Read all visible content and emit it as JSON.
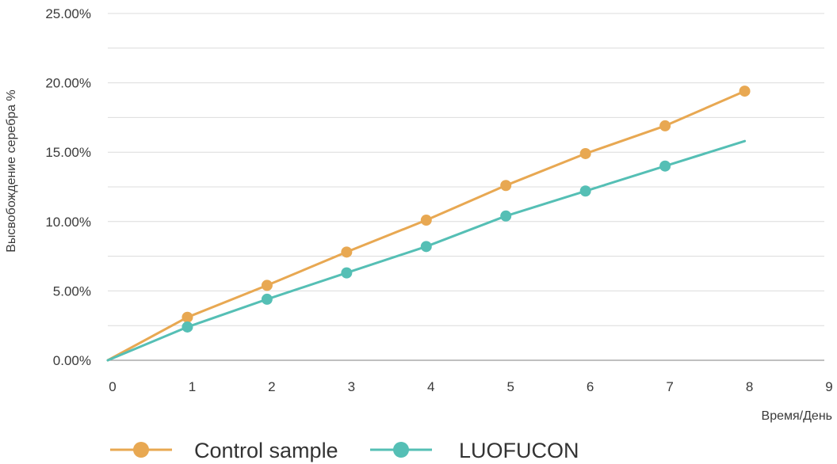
{
  "chart_data": {
    "type": "line",
    "xlabel": "Время/День",
    "ylabel": "Высвобождение серебра %",
    "xlim": [
      0,
      9
    ],
    "ylim": [
      0,
      25
    ],
    "x_ticks": [
      "0",
      "1",
      "2",
      "3",
      "4",
      "5",
      "6",
      "7",
      "8",
      "9"
    ],
    "y_ticks": [
      "0.00%",
      "5.00%",
      "10.00%",
      "15.00%",
      "20.00%",
      "25.00%"
    ],
    "y_tick_values": [
      0,
      5,
      10,
      15,
      20,
      25
    ],
    "grid": "horizontal",
    "legend_position": "bottom-left",
    "series": [
      {
        "name": "Control sample",
        "color": "#E8A852",
        "x": [
          0,
          1,
          2,
          3,
          4,
          5,
          6,
          7,
          8
        ],
        "values": [
          0,
          3.1,
          5.4,
          7.8,
          10.1,
          12.6,
          14.9,
          16.9,
          19.4
        ],
        "markers": [
          false,
          true,
          true,
          true,
          true,
          true,
          true,
          true,
          true
        ]
      },
      {
        "name": "LUOFUCON",
        "color": "#55BFB5",
        "x": [
          0,
          1,
          2,
          3,
          4,
          5,
          6,
          7,
          8
        ],
        "values": [
          0,
          2.4,
          4.4,
          6.3,
          8.2,
          10.4,
          12.2,
          14.0,
          15.8
        ],
        "markers": [
          false,
          true,
          true,
          true,
          true,
          true,
          true,
          true,
          false
        ]
      }
    ]
  }
}
